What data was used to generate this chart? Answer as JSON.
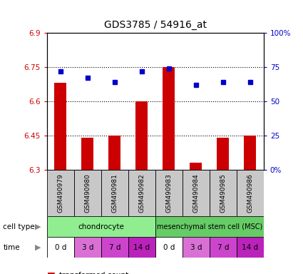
{
  "title": "GDS3785 / 54916_at",
  "samples": [
    "GSM490979",
    "GSM490980",
    "GSM490981",
    "GSM490982",
    "GSM490983",
    "GSM490984",
    "GSM490985",
    "GSM490986"
  ],
  "bar_values": [
    6.68,
    6.44,
    6.45,
    6.6,
    6.75,
    6.33,
    6.44,
    6.45
  ],
  "dot_values": [
    72,
    67,
    64,
    72,
    74,
    62,
    64,
    64
  ],
  "ylim_left": [
    6.3,
    6.9
  ],
  "ylim_right": [
    0,
    100
  ],
  "yticks_left": [
    6.3,
    6.45,
    6.6,
    6.75,
    6.9
  ],
  "yticks_right": [
    0,
    25,
    50,
    75,
    100
  ],
  "bar_color": "#cc0000",
  "dot_color": "#0000cc",
  "bar_bottom": 6.3,
  "cell_type_labels": [
    "chondrocyte",
    "mesenchymal stem cell (MSC)"
  ],
  "cell_type_colors": [
    "#90ee90",
    "#66cc66"
  ],
  "time_labels": [
    "0 d",
    "3 d",
    "7 d",
    "14 d",
    "0 d",
    "3 d",
    "7 d",
    "14 d"
  ],
  "time_colors": [
    "#ffffff",
    "#da70d6",
    "#cc44cc",
    "#bb22bb",
    "#ffffff",
    "#da70d6",
    "#cc44cc",
    "#bb22bb"
  ],
  "sample_bg_color": "#c8c8c8",
  "axis_color_left": "#cc0000",
  "axis_color_right": "#0000cc",
  "right_tick_labels": [
    "0%",
    "25",
    "50",
    "75",
    "100%"
  ]
}
